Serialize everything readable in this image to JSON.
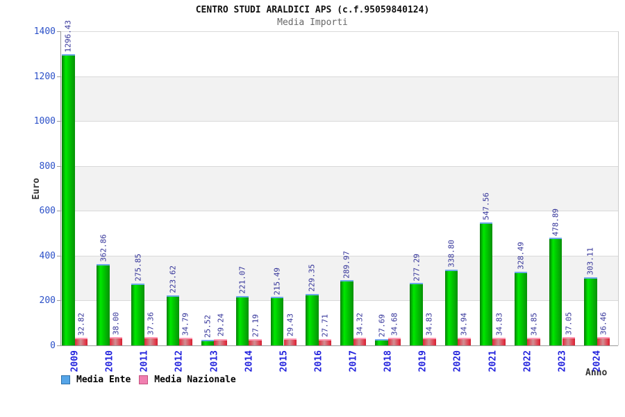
{
  "header": {
    "title": "CENTRO STUDI ARALDICI APS (c.f.95059840124)",
    "subtitle": "Media Importi"
  },
  "chart_data": {
    "type": "bar",
    "title": "CENTRO STUDI ARALDICI APS (c.f.95059840124)",
    "subtitle": "Media Importi",
    "xlabel": "Anno",
    "ylabel": "Euro",
    "ylim": [
      0,
      1400
    ],
    "yticks": [
      0,
      200,
      400,
      600,
      800,
      1000,
      1200,
      1400
    ],
    "grid": "horizontal gridlines with alternating gray bands",
    "legend_position": "bottom-left",
    "categories": [
      "2009",
      "2010",
      "2011",
      "2012",
      "2013",
      "2014",
      "2015",
      "2016",
      "2017",
      "2018",
      "2019",
      "2020",
      "2021",
      "2022",
      "2023",
      "2024"
    ],
    "series": [
      {
        "name": "Media Ente",
        "values": [
          1296.43,
          362.86,
          275.85,
          223.62,
          25.52,
          221.07,
          215.49,
          229.35,
          289.97,
          27.69,
          277.29,
          338.8,
          547.56,
          328.49,
          478.89,
          303.11
        ],
        "labels": [
          "1296.43",
          "362.86",
          "275.85",
          "223.62",
          "25.52",
          "221.07",
          "215.49",
          "229.35",
          "289.97",
          "27.69",
          "277.29",
          "338.80",
          "547.56",
          "328.49",
          "478.89",
          "303.11"
        ],
        "legend_swatch": {
          "fill": "#55a5e8",
          "border": "#2d6fa8"
        },
        "bar_cap": "#6ea8e8",
        "bar_gradient": [
          [
            "#067d06",
            0
          ],
          [
            "#00e800",
            30
          ],
          [
            "#00c900",
            55
          ],
          [
            "#089008",
            100
          ]
        ]
      },
      {
        "name": "Media Nazionale",
        "values": [
          32.82,
          38.0,
          37.36,
          34.79,
          29.24,
          27.19,
          29.43,
          27.71,
          34.32,
          34.68,
          34.83,
          34.94,
          34.83,
          34.85,
          37.05,
          36.46
        ],
        "labels": [
          "32.82",
          "38.00",
          "37.36",
          "34.79",
          "29.24",
          "27.19",
          "29.43",
          "27.71",
          "34.32",
          "34.68",
          "34.83",
          "34.94",
          "34.83",
          "34.85",
          "37.05",
          "36.46"
        ],
        "legend_swatch": {
          "fill": "#f07fb0",
          "border": "#c4517e"
        },
        "bar_cap": "#ff9ab5",
        "bar_gradient": [
          [
            "#e32738",
            0
          ],
          [
            "#d09094",
            45
          ],
          [
            "#e23243",
            88
          ],
          [
            "#c92231",
            100
          ]
        ]
      }
    ]
  },
  "colors": {
    "background": "#ffffff",
    "title_text": "#111111",
    "subtitle_text": "#666666",
    "axis_tick_text": "#2b50c8",
    "year_text": "#2222dd",
    "value_text": "#333399",
    "axis_line": "#999999",
    "gridline": "#d9d9d9",
    "band_gray": "#f2f2f2",
    "plot_right_border": "#cccccc"
  }
}
